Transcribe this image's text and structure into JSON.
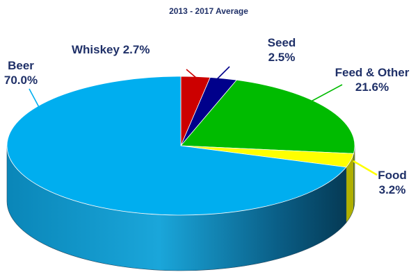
{
  "chart_data": {
    "type": "pie",
    "title": "2013 - 2017 Average",
    "slices": [
      {
        "name": "Whiskey",
        "value": 2.7,
        "label": "Whiskey  2.7%",
        "color": "#cc0000"
      },
      {
        "name": "Seed",
        "value": 2.5,
        "label_lines": [
          "Seed",
          "2.5%"
        ],
        "color": "#00008b"
      },
      {
        "name": "Feed & Other",
        "value": 21.6,
        "label_lines": [
          "Feed & Other",
          "21.6%"
        ],
        "color": "#00bb00"
      },
      {
        "name": "Food",
        "value": 3.2,
        "label_lines": [
          "Food",
          "3.2%"
        ],
        "color": "#ffff00"
      },
      {
        "name": "Beer",
        "value": 70.0,
        "label_lines": [
          "Beer",
          "70.0%"
        ],
        "color": "#00aeef"
      }
    ],
    "style": "3d"
  }
}
